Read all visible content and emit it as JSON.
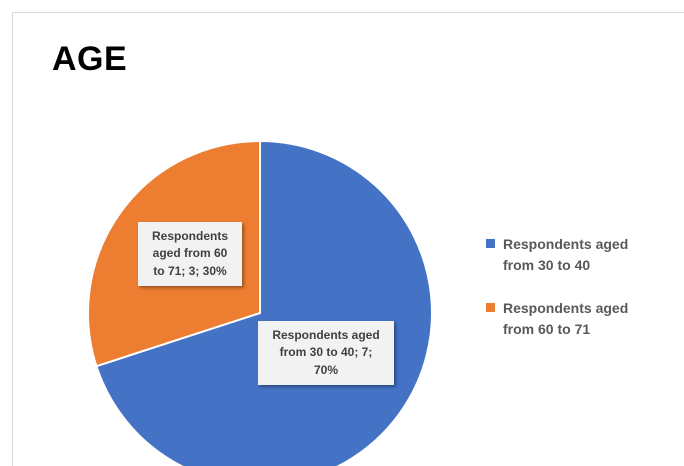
{
  "chart_data": {
    "type": "pie",
    "title": "AGE",
    "categories": [
      "Respondents aged from 30 to 40",
      "Respondents aged from 60 to 71"
    ],
    "values": [
      7,
      3
    ],
    "percentages": [
      70,
      30
    ],
    "colors": [
      "#4472c4",
      "#ed7d31"
    ],
    "data_labels": [
      {
        "lines": [
          "Respondents aged",
          "from 30 to 40; 7;",
          "70%"
        ]
      },
      {
        "lines": [
          "Respondents",
          "aged from 60",
          "to 71; 3; 30%"
        ]
      }
    ],
    "legend": {
      "placement": "right",
      "entries": [
        {
          "lines": [
            "Respondents aged",
            "from 30 to 40"
          ],
          "color": "#4472c4"
        },
        {
          "lines": [
            "Respondents aged",
            "from 60 to 71"
          ],
          "color": "#ed7d31"
        }
      ]
    }
  }
}
